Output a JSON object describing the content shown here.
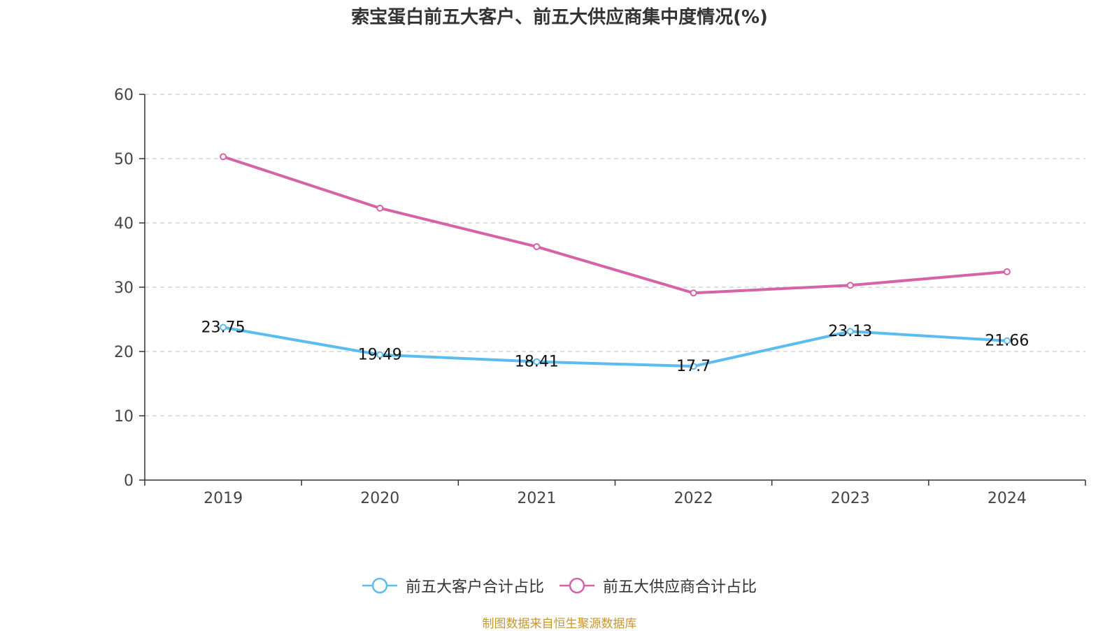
{
  "chart_data": {
    "type": "line",
    "title": "索宝蛋白前五大客户、前五大供应商集中度情况(%)",
    "categories": [
      "2019",
      "2020",
      "2021",
      "2022",
      "2023",
      "2024"
    ],
    "ylim": [
      0,
      60
    ],
    "yticks": [
      0,
      10,
      20,
      30,
      40,
      50,
      60
    ],
    "grid": true,
    "legend_position": "bottom",
    "series": [
      {
        "name": "前五大客户合计占比",
        "color": "#5bbcf0",
        "values": [
          23.75,
          19.49,
          18.41,
          17.7,
          23.13,
          21.66
        ],
        "labels": [
          "23.75",
          "19.49",
          "18.41",
          "17.7",
          "23.13",
          "21.66"
        ],
        "show_labels": true
      },
      {
        "name": "前五大供应商合计占比",
        "color": "#d563a8",
        "values": [
          50.3,
          42.3,
          36.3,
          29.1,
          30.3,
          32.4
        ],
        "show_labels": false
      }
    ]
  },
  "source": "制图数据来自恒生聚源数据库"
}
